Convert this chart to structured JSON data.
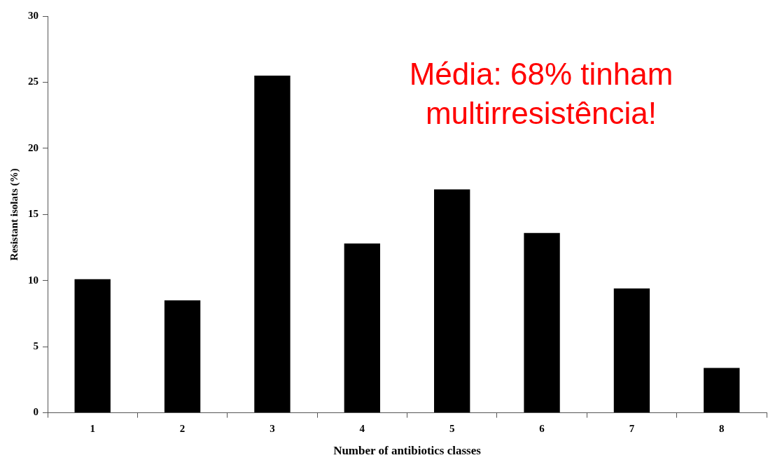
{
  "chart_data": {
    "type": "bar",
    "xlabel": "Number of antibiotics classes",
    "ylabel": "Resistant isolats (%)",
    "categories": [
      "1",
      "2",
      "3",
      "4",
      "5",
      "6",
      "7",
      "8"
    ],
    "values": [
      10.1,
      8.5,
      25.5,
      12.8,
      16.9,
      13.6,
      9.4,
      3.4
    ],
    "color": "#000000",
    "ylim": [
      0,
      30
    ],
    "yticks": [
      0,
      5,
      10,
      15,
      20,
      25,
      30
    ],
    "grid": false,
    "legend": false,
    "annotations": [
      "Média: 68% tinham multirresistência!"
    ]
  }
}
